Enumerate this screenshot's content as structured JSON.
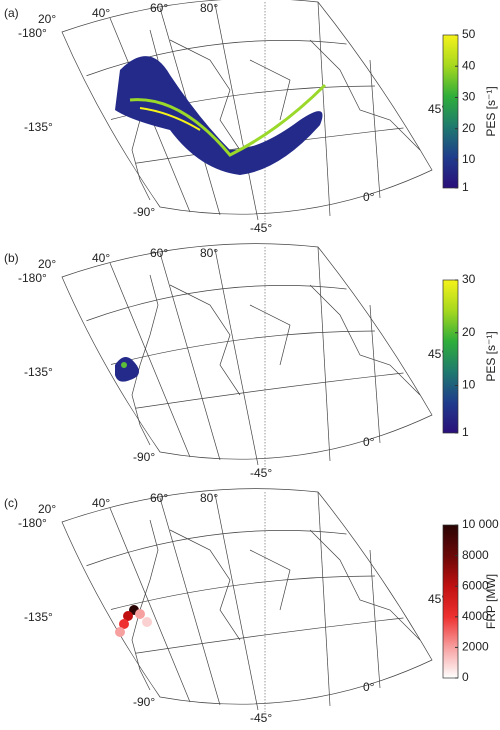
{
  "panels": [
    {
      "label": "(a)",
      "map_labels": [
        "20°",
        "40°",
        "60°",
        "80°",
        "-180°",
        "-135°",
        "-90°",
        "-45°",
        "0°",
        "45°"
      ],
      "colorbar": {
        "title": "PES [s⁻¹]",
        "lim": [
          1,
          50
        ],
        "ticks": [
          1,
          10,
          20,
          30,
          40,
          50
        ],
        "colors": [
          "#2a0f7a",
          "#1f3c8c",
          "#1f7a6e",
          "#2fae3a",
          "#a6d81e",
          "#f5f21a"
        ]
      }
    },
    {
      "label": "(b)",
      "map_labels": [
        "20°",
        "40°",
        "60°",
        "80°",
        "-180°",
        "-135°",
        "-90°",
        "-45°",
        "0°",
        "45°"
      ],
      "colorbar": {
        "title": "PES [s⁻¹]",
        "lim": [
          1,
          30
        ],
        "ticks": [
          1,
          10,
          20,
          30
        ],
        "colors": [
          "#2a0f7a",
          "#1f3c8c",
          "#1f7a6e",
          "#2fae3a",
          "#a6d81e",
          "#f5f21a"
        ]
      }
    },
    {
      "label": "(c)",
      "map_labels": [
        "20°",
        "40°",
        "60°",
        "80°",
        "-180°",
        "-135°",
        "-90°",
        "-45°",
        "0°",
        "45°"
      ],
      "colorbar": {
        "title": "FRP [MW]",
        "lim": [
          0,
          10000
        ],
        "ticks": [
          0,
          2000,
          4000,
          6000,
          8000,
          {
            "value": 10000,
            "label": "10 000"
          }
        ],
        "colors": [
          "#ffffff",
          "#f7a0a0",
          "#ee3030",
          "#c01010",
          "#6a0808",
          "#2a0404"
        ]
      }
    }
  ]
}
